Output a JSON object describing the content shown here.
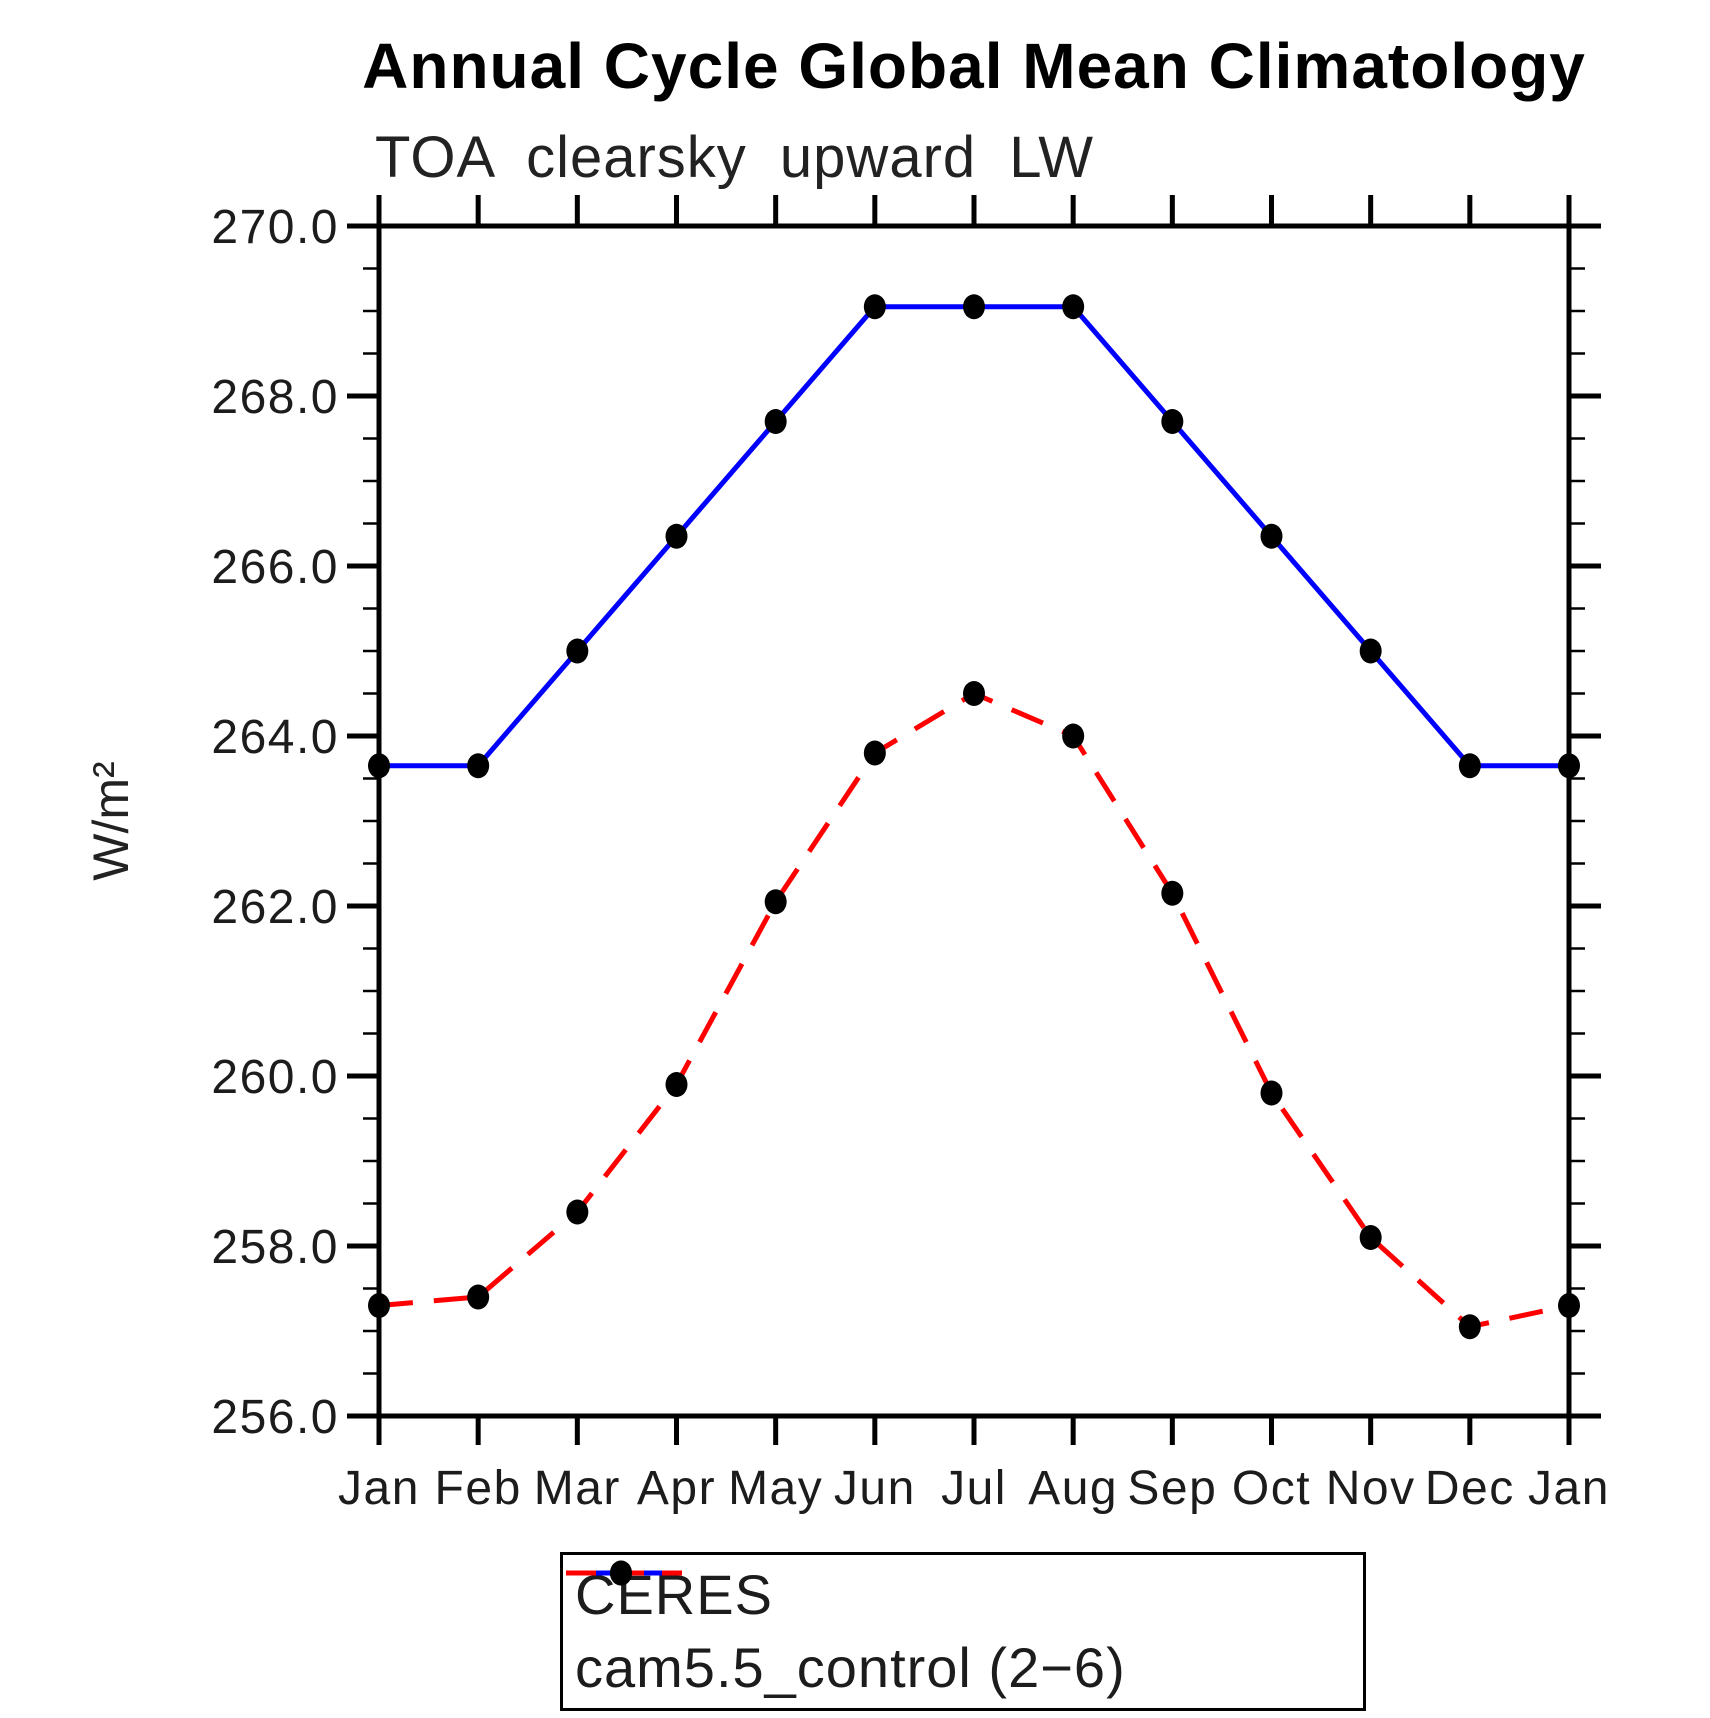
{
  "chart_data": {
    "type": "line",
    "title": "Annual Cycle Global Mean Climatology",
    "subtitle": "TOA clearsky upward LW",
    "ylabel": "W/m²",
    "xlabel": "",
    "categories": [
      "Jan",
      "Feb",
      "Mar",
      "Apr",
      "May",
      "Jun",
      "Jul",
      "Aug",
      "Sep",
      "Oct",
      "Nov",
      "Dec",
      "Jan"
    ],
    "series": [
      {
        "name": "CERES",
        "color": "#0000ff",
        "line_style": "solid",
        "marker": "filled-circle",
        "marker_color": "#000000",
        "values": [
          263.65,
          263.65,
          265.0,
          266.35,
          267.7,
          269.05,
          269.05,
          269.05,
          267.7,
          266.35,
          265.0,
          263.65,
          263.65
        ]
      },
      {
        "name": "cam5.5_control (2−6)",
        "color": "#ff0000",
        "line_style": "dashed",
        "marker": "filled-circle",
        "marker_color": "#000000",
        "values": [
          257.3,
          257.4,
          258.4,
          259.9,
          262.05,
          263.8,
          264.5,
          264.0,
          262.15,
          259.8,
          258.1,
          257.05,
          257.3
        ]
      }
    ],
    "ylim": [
      256.0,
      270.0
    ],
    "ytick_major_step": 2.0,
    "ytick_minor_step": 0.5,
    "ytick_labels": [
      "256.0",
      "258.0",
      "260.0",
      "262.0",
      "264.0",
      "266.0",
      "268.0",
      "270.0"
    ],
    "grid": false,
    "legend_position": "bottom-center",
    "axis_color": "#000000",
    "background_color": "#ffffff"
  }
}
